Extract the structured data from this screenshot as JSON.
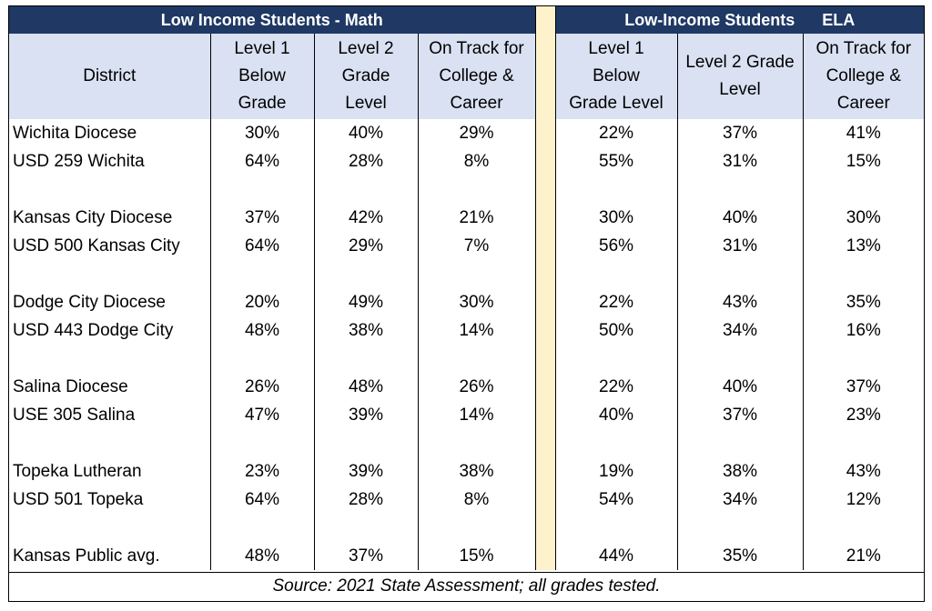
{
  "headers": {
    "math_title": "Low Income Students - Math",
    "ela_title": "Low-Income Students      ELA",
    "district": "District",
    "math_level1": "Level 1 Below Grade",
    "math_level2": "Level 2 Grade Level",
    "math_ontrack": "On Track for College & Career",
    "ela_level1": "Level 1 Below Grade Level",
    "ela_level2": "Level 2 Grade Level",
    "ela_ontrack": "On Track for College & Career"
  },
  "rows": [
    {
      "district": "Wichita Diocese",
      "m1": "30%",
      "m2": "40%",
      "m3": "29%",
      "e1": "22%",
      "e2": "37%",
      "e3": "41%"
    },
    {
      "district": "USD 259 Wichita",
      "m1": "64%",
      "m2": "28%",
      "m3": "8%",
      "e1": "55%",
      "e2": "31%",
      "e3": "15%"
    },
    {
      "district": "Kansas City Diocese",
      "m1": "37%",
      "m2": "42%",
      "m3": "21%",
      "e1": "30%",
      "e2": "40%",
      "e3": "30%"
    },
    {
      "district": "USD 500 Kansas City",
      "m1": "64%",
      "m2": "29%",
      "m3": "7%",
      "e1": "56%",
      "e2": "31%",
      "e3": "13%"
    },
    {
      "district": "Dodge City Diocese",
      "m1": "20%",
      "m2": "49%",
      "m3": "30%",
      "e1": "22%",
      "e2": "43%",
      "e3": "35%"
    },
    {
      "district": "USD 443 Dodge City",
      "m1": "48%",
      "m2": "38%",
      "m3": "14%",
      "e1": "50%",
      "e2": "34%",
      "e3": "16%"
    },
    {
      "district": "Salina Diocese",
      "m1": "26%",
      "m2": "48%",
      "m3": "26%",
      "e1": "22%",
      "e2": "40%",
      "e3": "37%"
    },
    {
      "district": "USE 305 Salina",
      "m1": "47%",
      "m2": "39%",
      "m3": "14%",
      "e1": "40%",
      "e2": "37%",
      "e3": "23%"
    },
    {
      "district": "Topeka Lutheran",
      "m1": "23%",
      "m2": "39%",
      "m3": "38%",
      "e1": "19%",
      "e2": "38%",
      "e3": "43%"
    },
    {
      "district": "USD 501 Topeka",
      "m1": "64%",
      "m2": "28%",
      "m3": "8%",
      "e1": "54%",
      "e2": "34%",
      "e3": "12%"
    },
    {
      "district": "Kansas Public avg.",
      "m1": "48%",
      "m2": "37%",
      "m3": "15%",
      "e1": "44%",
      "e2": "35%",
      "e3": "21%"
    }
  ],
  "source": "Source: 2021 State Assessment; all grades tested.",
  "colors": {
    "header_band": "#1f3864",
    "subheader": "#d9e1f2",
    "separator": "#fef2cc"
  }
}
